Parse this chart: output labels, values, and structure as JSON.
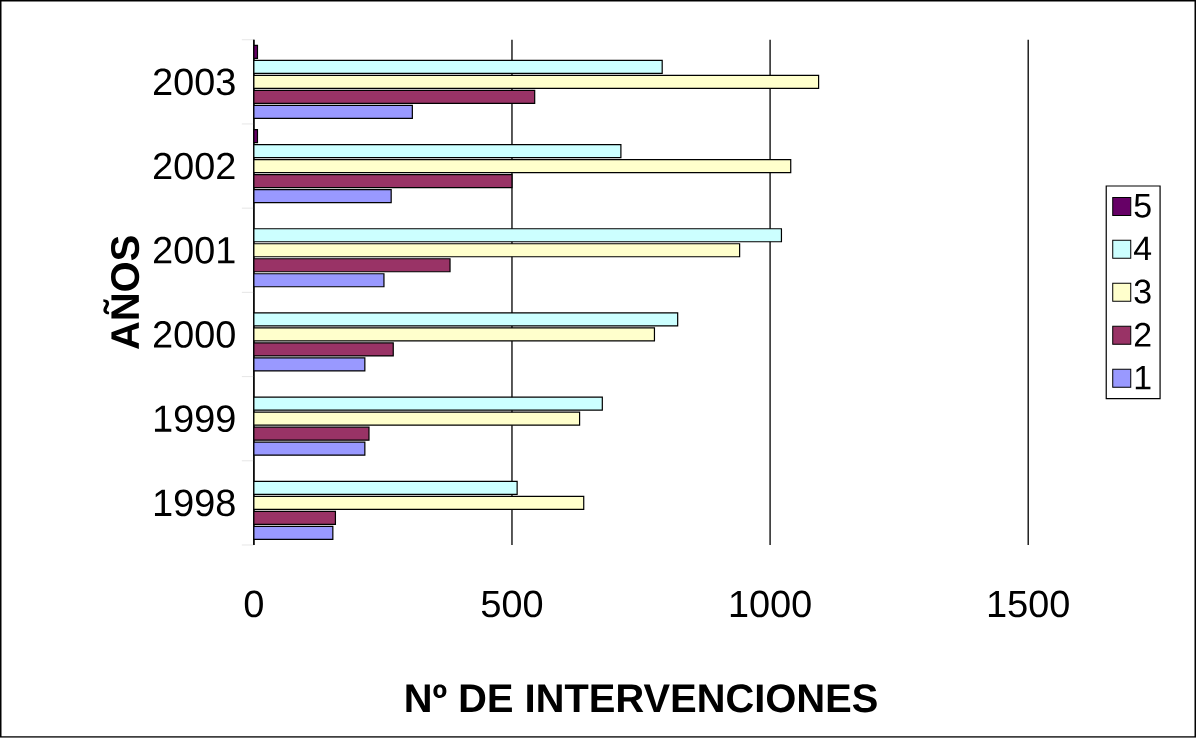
{
  "chart_data": {
    "type": "bar",
    "orientation": "horizontal",
    "xlabel": "Nº DE INTERVENCIONES",
    "ylabel": "AÑOS",
    "categories": [
      "2003",
      "2002",
      "2001",
      "2000",
      "1999",
      "1998"
    ],
    "series": [
      {
        "name": "1",
        "color": "#9999ff",
        "values": [
          307,
          266,
          252,
          215,
          215,
          153
        ]
      },
      {
        "name": "2",
        "color": "#993366",
        "values": [
          544,
          500,
          380,
          270,
          223,
          158
        ]
      },
      {
        "name": "3",
        "color": "#ffffcc",
        "values": [
          1094,
          1040,
          941,
          776,
          631,
          639
        ]
      },
      {
        "name": "4",
        "color": "#ccffff",
        "values": [
          791,
          711,
          1022,
          821,
          675,
          510
        ]
      },
      {
        "name": "5",
        "color": "#660066",
        "values": [
          7,
          7,
          null,
          null,
          null,
          null
        ]
      }
    ],
    "xlim": [
      0,
      1500
    ],
    "xticks": [
      0,
      500,
      1000,
      1500
    ],
    "grid": "x",
    "legend": "right"
  }
}
